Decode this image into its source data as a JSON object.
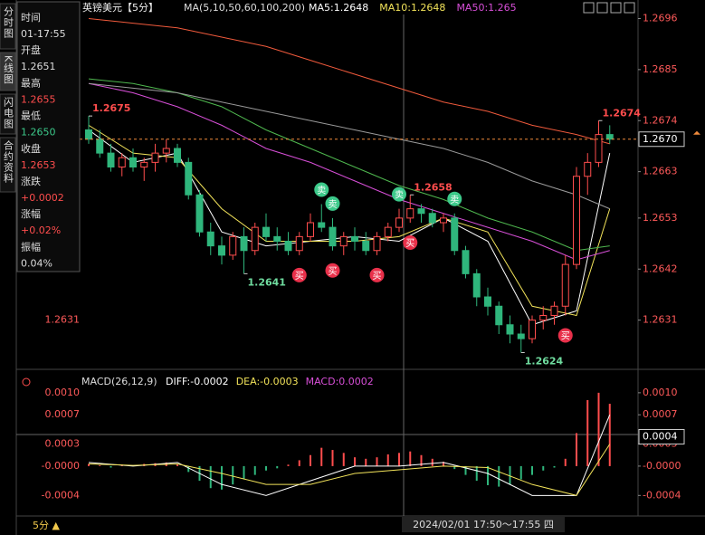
{
  "sidebar": [
    "分时图",
    "K线图",
    "闪电图",
    "合约资料"
  ],
  "info_panel": [
    {
      "label": "时间",
      "value": "01-17:55",
      "color": "#dddddd"
    },
    {
      "label": "开盘",
      "value": "1.2651",
      "color": "#dddddd"
    },
    {
      "label": "最高",
      "value": "1.2655",
      "color": "#ff4d4d"
    },
    {
      "label": "最低",
      "value": "1.2650",
      "color": "#3cc98a"
    },
    {
      "label": "收盘",
      "value": "1.2653",
      "color": "#ff4d4d"
    },
    {
      "label": "涨跌",
      "value": "+0.0002",
      "color": "#ff4d4d"
    },
    {
      "label": "涨幅",
      "value": "+0.02%",
      "color": "#ff4d4d"
    },
    {
      "label": "振幅",
      "value": "0.04%",
      "color": "#dddddd"
    }
  ],
  "chart_data": [
    {
      "type": "candlestick",
      "title": "英镑美元【5分】",
      "legend_title": "MA(5,10,50,60,100,200)",
      "ylim": [
        1.262,
        1.27
      ],
      "yticks": [
        1.2696,
        1.2685,
        1.2674,
        1.2663,
        1.2653,
        1.2642,
        1.2631
      ],
      "up_color": "#ff4d4d",
      "down_color": "#2fb67c",
      "candles": [
        [
          1.2672,
          1.2675,
          1.2669,
          1.267
        ],
        [
          1.267,
          1.2672,
          1.2666,
          1.2667
        ],
        [
          1.2667,
          1.2669,
          1.2663,
          1.2664
        ],
        [
          1.2664,
          1.2667,
          1.2662,
          1.2666
        ],
        [
          1.2666,
          1.2668,
          1.2663,
          1.2664
        ],
        [
          1.2664,
          1.2666,
          1.2661,
          1.2665
        ],
        [
          1.2665,
          1.2669,
          1.2663,
          1.2667
        ],
        [
          1.2667,
          1.267,
          1.2665,
          1.2668
        ],
        [
          1.2668,
          1.2669,
          1.2664,
          1.2665
        ],
        [
          1.2665,
          1.2666,
          1.2657,
          1.2658
        ],
        [
          1.2658,
          1.2659,
          1.2649,
          1.265
        ],
        [
          1.265,
          1.2652,
          1.2645,
          1.2647
        ],
        [
          1.2647,
          1.2649,
          1.2643,
          1.2645
        ],
        [
          1.2645,
          1.265,
          1.2644,
          1.2649
        ],
        [
          1.2649,
          1.2651,
          1.2641,
          1.2646
        ],
        [
          1.2646,
          1.2652,
          1.2645,
          1.2651
        ],
        [
          1.2651,
          1.2654,
          1.2648,
          1.2649
        ],
        [
          1.2649,
          1.2651,
          1.2646,
          1.2648
        ],
        [
          1.2648,
          1.265,
          1.2645,
          1.2646
        ],
        [
          1.2646,
          1.265,
          1.2645,
          1.2649
        ],
        [
          1.2649,
          1.2654,
          1.2648,
          1.2652
        ],
        [
          1.2652,
          1.2656,
          1.265,
          1.2651
        ],
        [
          1.2651,
          1.2653,
          1.2646,
          1.2647
        ],
        [
          1.2647,
          1.265,
          1.2645,
          1.2649
        ],
        [
          1.2649,
          1.2651,
          1.2646,
          1.2648
        ],
        [
          1.2648,
          1.265,
          1.2645,
          1.2646
        ],
        [
          1.2646,
          1.265,
          1.2645,
          1.2649
        ],
        [
          1.2649,
          1.2652,
          1.2648,
          1.2651
        ],
        [
          1.2651,
          1.2655,
          1.265,
          1.2653
        ],
        [
          1.2653,
          1.2658,
          1.2652,
          1.2655
        ],
        [
          1.2655,
          1.2656,
          1.2652,
          1.2654
        ],
        [
          1.2654,
          1.2655,
          1.2651,
          1.2652
        ],
        [
          1.2652,
          1.2654,
          1.265,
          1.2653
        ],
        [
          1.2653,
          1.2654,
          1.2645,
          1.2646
        ],
        [
          1.2646,
          1.2647,
          1.264,
          1.2641
        ],
        [
          1.2641,
          1.2642,
          1.2634,
          1.2636
        ],
        [
          1.2636,
          1.2638,
          1.2632,
          1.2634
        ],
        [
          1.2634,
          1.2635,
          1.2628,
          1.263
        ],
        [
          1.263,
          1.2632,
          1.2626,
          1.2628
        ],
        [
          1.2628,
          1.263,
          1.2624,
          1.2627
        ],
        [
          1.2627,
          1.2632,
          1.2626,
          1.2631
        ],
        [
          1.2631,
          1.2634,
          1.2629,
          1.2632
        ],
        [
          1.2632,
          1.2635,
          1.263,
          1.2634
        ],
        [
          1.2634,
          1.2645,
          1.2632,
          1.2643
        ],
        [
          1.2643,
          1.2664,
          1.2642,
          1.2662
        ],
        [
          1.2662,
          1.2667,
          1.2658,
          1.2665
        ],
        [
          1.2665,
          1.2674,
          1.2664,
          1.2671
        ],
        [
          1.2671,
          1.2673,
          1.2669,
          1.267
        ]
      ],
      "ma_x": [
        0,
        4,
        8,
        12,
        16,
        20,
        24,
        28,
        32,
        36,
        40,
        44,
        47
      ],
      "series": [
        {
          "name": "MA5:1.2648",
          "color": "#ffffff",
          "values": [
            1.2672,
            1.2665,
            1.2667,
            1.265,
            1.2647,
            1.2648,
            1.2649,
            1.2648,
            1.2653,
            1.2648,
            1.263,
            1.2633,
            1.2667
          ]
        },
        {
          "name": "MA10:1.2648",
          "color": "#f2e35a",
          "values": [
            1.2673,
            1.2667,
            1.2666,
            1.2655,
            1.2648,
            1.2648,
            1.2648,
            1.2649,
            1.2653,
            1.265,
            1.2634,
            1.2632,
            1.2655
          ]
        },
        {
          "name": "MA50:1.265",
          "color": "#d84fd8",
          "values": [
            1.2682,
            1.268,
            1.2677,
            1.2673,
            1.2668,
            1.2665,
            1.2661,
            1.2657,
            1.2654,
            1.2651,
            1.2648,
            1.2644,
            1.2646
          ]
        },
        {
          "color": "#4fb84f",
          "values": [
            1.2683,
            1.2682,
            1.268,
            1.2677,
            1.2672,
            1.2668,
            1.2664,
            1.266,
            1.2657,
            1.2653,
            1.265,
            1.2646,
            1.2647
          ]
        },
        {
          "color": "#9a9a9a",
          "values": [
            1.2682,
            1.2681,
            1.268,
            1.2678,
            1.2676,
            1.2674,
            1.2672,
            1.267,
            1.2668,
            1.2665,
            1.2661,
            1.2658,
            1.2655
          ]
        },
        {
          "color": "#f05a3c",
          "values": [
            1.2696,
            1.2695,
            1.2694,
            1.2692,
            1.269,
            1.2687,
            1.2684,
            1.2681,
            1.2678,
            1.2676,
            1.2673,
            1.2671,
            1.2669
          ]
        }
      ],
      "last_price": {
        "value": 1.267,
        "label": "1.2670"
      },
      "last_price_color": "#f08a3c",
      "annotations": [
        {
          "text": "1.2675",
          "candle": 0
        },
        {
          "text": "1.2641",
          "candle": 14
        },
        {
          "text": "1.2658",
          "candle": 29
        },
        {
          "text": "1.2624",
          "candle": 39
        },
        {
          "text": "1.2674",
          "candle": 46
        }
      ],
      "signals": [
        {
          "label": "卖",
          "candle": 21
        },
        {
          "label": "卖",
          "candle": 22
        },
        {
          "label": "卖",
          "candle": 28
        },
        {
          "label": "卖",
          "candle": 33
        },
        {
          "label": "买",
          "candle": 19
        },
        {
          "label": "买",
          "candle": 22
        },
        {
          "label": "买",
          "candle": 26
        },
        {
          "label": "买",
          "candle": 29
        },
        {
          "label": "买",
          "candle": 43
        }
      ]
    },
    {
      "type": "bar",
      "title": "MACD(26,12,9)",
      "ylim": [
        -0.00068,
        0.00127
      ],
      "yticks": [
        {
          "value": 0.001,
          "label": "0.0010"
        },
        0.0007,
        0.0003,
        {
          "value": 0,
          "label": "-0.0000"
        },
        -0.0004
      ],
      "current": 0.0004,
      "histogram": {
        "name": "MACD:0.0002",
        "color": "#d84fd8",
        "up_color": "#ff4d4d",
        "down_color": "#2fb67c",
        "values": [
          3e-05,
          1e-05,
          -2e-05,
          2e-05,
          1e-05,
          3e-05,
          4e-05,
          5e-05,
          2e-05,
          -8e-05,
          -0.0002,
          -0.0003,
          -0.00032,
          -0.00025,
          -0.00018,
          -0.00012,
          -6e-05,
          -3e-05,
          2e-05,
          8e-05,
          0.00015,
          0.00025,
          0.00022,
          0.00018,
          0.00012,
          0.0001,
          0.00012,
          0.00016,
          0.00018,
          0.0002,
          0.00015,
          0.0001,
          6e-05,
          -4e-05,
          -0.00012,
          -0.0002,
          -0.00026,
          -0.00028,
          -0.00025,
          -0.00018,
          -0.00012,
          -6e-05,
          -2e-05,
          0.0001,
          0.00045,
          0.0009,
          0.001,
          0.00085
        ]
      },
      "x": [
        0,
        4,
        8,
        12,
        16,
        20,
        24,
        28,
        32,
        36,
        40,
        44,
        47
      ],
      "series": [
        {
          "name": "DIFF:-0.0002",
          "color": "#ffffff",
          "values": [
            5e-05,
            0,
            5e-05,
            -0.00025,
            -0.0004,
            -0.0002,
            0,
            0,
            5e-05,
            -0.0001,
            -0.0004,
            -0.0004,
            0.0007
          ]
        },
        {
          "name": "DEA:-0.0003",
          "color": "#f2e35a",
          "values": [
            3e-05,
            1e-05,
            3e-05,
            -0.0001,
            -0.00025,
            -0.00025,
            -0.0001,
            -5e-05,
            0,
            -2e-05,
            -0.00025,
            -0.0004,
            0.0003
          ]
        }
      ]
    }
  ],
  "footer": {
    "period": "5分 ▲",
    "crosshair_time": "2024/02/01 17:50～17:55 四"
  }
}
